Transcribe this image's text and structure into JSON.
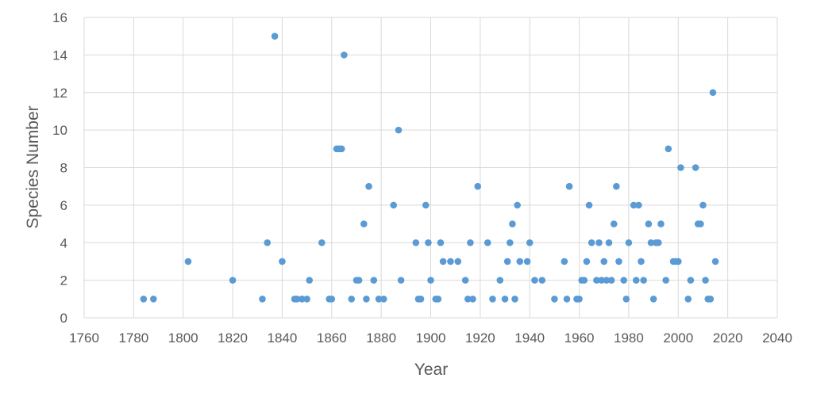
{
  "chart_data": {
    "type": "scatter",
    "xlabel": "Year",
    "ylabel": "Species Number",
    "xlim": [
      1760,
      2040
    ],
    "ylim": [
      0,
      16
    ],
    "x_ticks": [
      "1760",
      "1780",
      "1800",
      "1820",
      "1840",
      "1860",
      "1880",
      "1900",
      "1920",
      "1940",
      "1960",
      "1980",
      "2000",
      "2020",
      "2040"
    ],
    "y_ticks": [
      "0",
      "2",
      "4",
      "6",
      "8",
      "10",
      "12",
      "14",
      "16"
    ],
    "grid": true,
    "legend": "none",
    "marker_color": "#5B9BD5",
    "grid_color": "#D9D9D9",
    "points": [
      [
        1784,
        1
      ],
      [
        1788,
        1
      ],
      [
        1802,
        3
      ],
      [
        1820,
        2
      ],
      [
        1832,
        1
      ],
      [
        1834,
        4
      ],
      [
        1837,
        15
      ],
      [
        1840,
        3
      ],
      [
        1845,
        1
      ],
      [
        1846,
        1
      ],
      [
        1848,
        1
      ],
      [
        1850,
        1
      ],
      [
        1851,
        2
      ],
      [
        1856,
        4
      ],
      [
        1859,
        1
      ],
      [
        1860,
        1
      ],
      [
        1862,
        9
      ],
      [
        1863,
        9
      ],
      [
        1864,
        9
      ],
      [
        1865,
        14
      ],
      [
        1868,
        1
      ],
      [
        1870,
        2
      ],
      [
        1871,
        2
      ],
      [
        1873,
        5
      ],
      [
        1874,
        1
      ],
      [
        1875,
        7
      ],
      [
        1877,
        2
      ],
      [
        1879,
        1
      ],
      [
        1881,
        1
      ],
      [
        1885,
        6
      ],
      [
        1887,
        10
      ],
      [
        1888,
        2
      ],
      [
        1894,
        4
      ],
      [
        1895,
        1
      ],
      [
        1896,
        1
      ],
      [
        1898,
        6
      ],
      [
        1899,
        4
      ],
      [
        1900,
        2
      ],
      [
        1902,
        1
      ],
      [
        1903,
        1
      ],
      [
        1904,
        4
      ],
      [
        1905,
        3
      ],
      [
        1908,
        3
      ],
      [
        1911,
        3
      ],
      [
        1914,
        2
      ],
      [
        1915,
        1
      ],
      [
        1916,
        4
      ],
      [
        1917,
        1
      ],
      [
        1919,
        7
      ],
      [
        1923,
        4
      ],
      [
        1925,
        1
      ],
      [
        1928,
        2
      ],
      [
        1930,
        1
      ],
      [
        1931,
        3
      ],
      [
        1932,
        4
      ],
      [
        1933,
        5
      ],
      [
        1934,
        1
      ],
      [
        1935,
        6
      ],
      [
        1936,
        3
      ],
      [
        1939,
        3
      ],
      [
        1940,
        4
      ],
      [
        1942,
        2
      ],
      [
        1945,
        2
      ],
      [
        1950,
        1
      ],
      [
        1954,
        3
      ],
      [
        1955,
        1
      ],
      [
        1956,
        7
      ],
      [
        1959,
        1
      ],
      [
        1960,
        1
      ],
      [
        1961,
        2
      ],
      [
        1962,
        2
      ],
      [
        1963,
        3
      ],
      [
        1964,
        6
      ],
      [
        1965,
        4
      ],
      [
        1967,
        2
      ],
      [
        1968,
        4
      ],
      [
        1969,
        2
      ],
      [
        1970,
        3
      ],
      [
        1971,
        2
      ],
      [
        1972,
        4
      ],
      [
        1973,
        2
      ],
      [
        1974,
        5
      ],
      [
        1975,
        7
      ],
      [
        1976,
        3
      ],
      [
        1978,
        2
      ],
      [
        1979,
        1
      ],
      [
        1980,
        4
      ],
      [
        1982,
        6
      ],
      [
        1983,
        2
      ],
      [
        1984,
        6
      ],
      [
        1985,
        3
      ],
      [
        1986,
        2
      ],
      [
        1988,
        5
      ],
      [
        1989,
        4
      ],
      [
        1990,
        1
      ],
      [
        1991,
        4
      ],
      [
        1992,
        4
      ],
      [
        1993,
        5
      ],
      [
        1995,
        2
      ],
      [
        1996,
        9
      ],
      [
        1998,
        3
      ],
      [
        1999,
        3
      ],
      [
        2000,
        3
      ],
      [
        2001,
        8
      ],
      [
        2004,
        1
      ],
      [
        2005,
        2
      ],
      [
        2007,
        8
      ],
      [
        2008,
        5
      ],
      [
        2009,
        5
      ],
      [
        2010,
        6
      ],
      [
        2011,
        2
      ],
      [
        2012,
        1
      ],
      [
        2013,
        1
      ],
      [
        2014,
        12
      ],
      [
        2015,
        3
      ]
    ]
  }
}
